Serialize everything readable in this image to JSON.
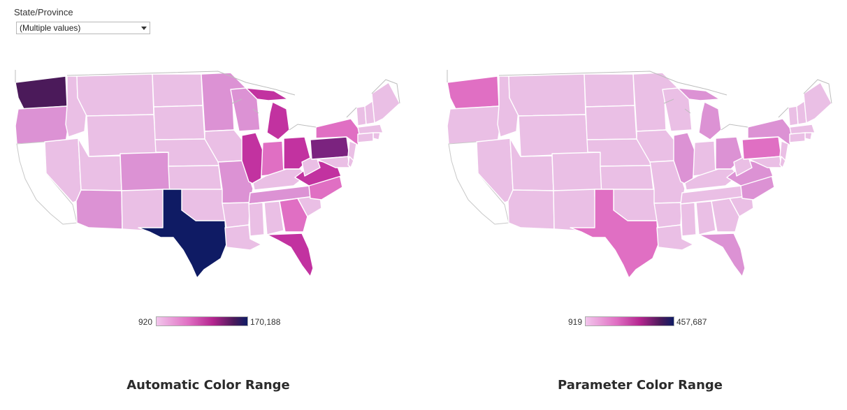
{
  "filter": {
    "label": "State/Province",
    "value": "(Multiple values)"
  },
  "colors": {
    "lightest": "#f2c6ec",
    "light": "#eabfe5",
    "mid_light": "#dc92d4",
    "mid": "#e06fc3",
    "strong": "#c232a0",
    "deep": "#7b237f",
    "darker": "#4b1a5a",
    "darkest": "#0f1b64",
    "excluded": "#ffffff",
    "border": "#ffffff",
    "excluded_border": "#c8c8c8"
  },
  "maps": [
    {
      "id": "automatic",
      "title": "Automatic Color Range",
      "legend": {
        "min": "920",
        "max": "170,188"
      },
      "highlight": {
        "WA": "darker",
        "TX": "darkest",
        "PA": "deep",
        "IL": "strong",
        "OH": "strong",
        "MI": "strong",
        "FL": "strong",
        "VA": "strong",
        "NC": "mid",
        "GA": "mid",
        "IN": "mid",
        "NY": "mid",
        "AZ": "mid_light",
        "CO": "mid_light",
        "OR": "mid_light",
        "MN": "mid_light",
        "WI": "mid_light",
        "TN": "mid_light",
        "MO": "mid_light",
        "CA": "excluded"
      }
    },
    {
      "id": "parameter",
      "title": "Parameter Color Range",
      "legend": {
        "min": "919",
        "max": "457,687"
      },
      "highlight": {
        "WA": "mid",
        "TX": "mid",
        "PA": "mid",
        "IL": "mid_light",
        "OH": "mid_light",
        "MI": "mid_light",
        "FL": "mid_light",
        "VA": "mid_light",
        "NC": "mid_light",
        "NY": "mid_light",
        "CA": "excluded"
      }
    }
  ]
}
